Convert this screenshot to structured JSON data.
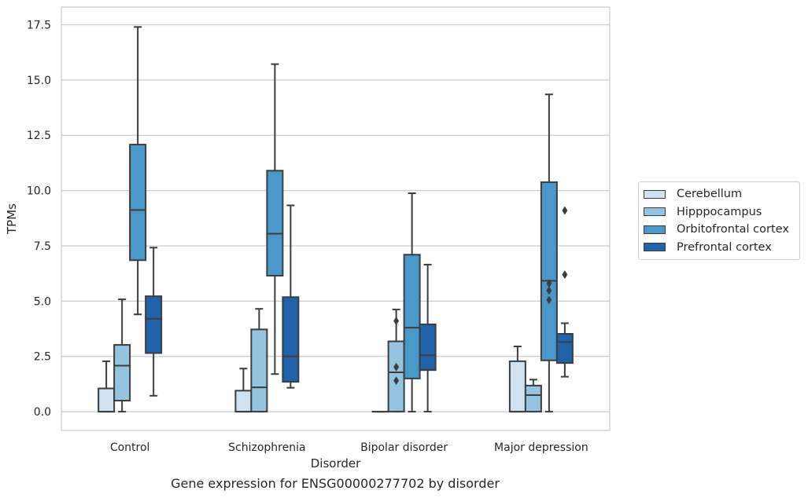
{
  "chart_data": {
    "type": "boxplot",
    "xlabel": "Disorder",
    "ylabel": "TPMs",
    "caption": "Gene expression for ENSG00000277702 by disorder",
    "ylim": [
      -0.85,
      18.3
    ],
    "yticks": [
      "0.0",
      "2.5",
      "5.0",
      "7.5",
      "10.0",
      "12.5",
      "15.0",
      "17.5"
    ],
    "grid": "horizontal",
    "legend_position": "right",
    "categories": [
      "Control",
      "Schizophrenia",
      "Bipolar disorder",
      "Major depression"
    ],
    "series": [
      {
        "name": "Cerebellum",
        "color": "#d0e1f2",
        "boxes": [
          {
            "q1": 0.0,
            "median": 0.0,
            "q3": 1.05,
            "whislo": 0.0,
            "whishi": 2.28,
            "fliers": []
          },
          {
            "q1": 0.0,
            "median": 0.0,
            "q3": 0.95,
            "whislo": 0.0,
            "whishi": 1.95,
            "fliers": []
          },
          {
            "q1": 0.0,
            "median": 0.0,
            "q3": 0.0,
            "whislo": 0.0,
            "whishi": 0.0,
            "fliers": []
          },
          {
            "q1": 0.0,
            "median": 0.0,
            "q3": 2.28,
            "whislo": 0.0,
            "whishi": 2.95,
            "fliers": []
          }
        ]
      },
      {
        "name": "Hipppocampus",
        "color": "#94c4df",
        "boxes": [
          {
            "q1": 0.5,
            "median": 2.08,
            "q3": 3.02,
            "whislo": 0.0,
            "whishi": 5.08,
            "fliers": []
          },
          {
            "q1": 0.0,
            "median": 1.1,
            "q3": 3.72,
            "whislo": 0.0,
            "whishi": 4.65,
            "fliers": []
          },
          {
            "q1": 0.0,
            "median": 1.78,
            "q3": 3.18,
            "whislo": 0.0,
            "whishi": 4.62,
            "fliers": [
              4.1,
              2.02,
              1.4
            ]
          },
          {
            "q1": 0.0,
            "median": 0.75,
            "q3": 1.18,
            "whislo": 0.0,
            "whishi": 1.45,
            "fliers": []
          }
        ]
      },
      {
        "name": "Orbitofrontal cortex",
        "color": "#4a98c9",
        "boxes": [
          {
            "q1": 6.85,
            "median": 9.12,
            "q3": 12.08,
            "whislo": 4.4,
            "whishi": 17.4,
            "fliers": []
          },
          {
            "q1": 6.15,
            "median": 8.05,
            "q3": 10.9,
            "whislo": 1.7,
            "whishi": 15.72,
            "fliers": []
          },
          {
            "q1": 1.5,
            "median": 3.8,
            "q3": 7.1,
            "whislo": 0.0,
            "whishi": 9.88,
            "fliers": []
          },
          {
            "q1": 2.32,
            "median": 5.92,
            "q3": 10.38,
            "whislo": 0.0,
            "whishi": 14.35,
            "fliers": [
              5.8,
              5.48,
              5.05
            ]
          }
        ]
      },
      {
        "name": "Prefrontal cortex",
        "color": "#2163aa",
        "boxes": [
          {
            "q1": 2.65,
            "median": 4.2,
            "q3": 5.22,
            "whislo": 0.72,
            "whishi": 7.42,
            "fliers": []
          },
          {
            "q1": 1.35,
            "median": 2.5,
            "q3": 5.18,
            "whislo": 1.08,
            "whishi": 9.33,
            "fliers": []
          },
          {
            "q1": 1.88,
            "median": 2.55,
            "q3": 3.95,
            "whislo": 0.0,
            "whishi": 6.65,
            "fliers": []
          },
          {
            "q1": 2.2,
            "median": 3.15,
            "q3": 3.52,
            "whislo": 1.58,
            "whishi": 4.0,
            "fliers": [
              9.1,
              6.2
            ]
          }
        ]
      }
    ]
  }
}
